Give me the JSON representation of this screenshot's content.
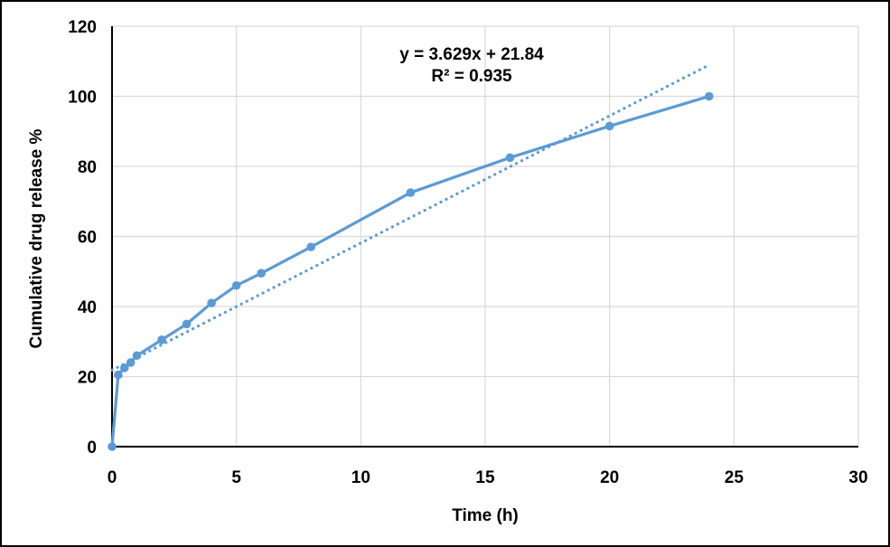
{
  "chart_data": {
    "type": "line",
    "title": "",
    "xlabel": "Time (h)",
    "ylabel": "Cumulative drug release %",
    "x": [
      0,
      0.25,
      0.5,
      0.75,
      1,
      2,
      3,
      4,
      5,
      6,
      8,
      12,
      16,
      20,
      24
    ],
    "series": [
      {
        "name": "cumulative-drug-release",
        "marker": "circle",
        "values": [
          0,
          20.5,
          22.5,
          24,
          26,
          30.5,
          35,
          41,
          46,
          49.5,
          57,
          72.5,
          82.5,
          91.5,
          100
        ]
      }
    ],
    "trendline": {
      "slope": 3.629,
      "intercept": 21.84,
      "r_squared": 0.935,
      "x_start": 0,
      "x_end": 24,
      "style": "dotted"
    },
    "annotation": {
      "equation": "y = 3.629x + 21.84",
      "r_squared": "R² = 0.935"
    },
    "xlim": [
      0,
      30
    ],
    "ylim": [
      0,
      120
    ],
    "xticks": [
      0,
      5,
      10,
      15,
      20,
      25,
      30
    ],
    "yticks": [
      0,
      20,
      40,
      60,
      80,
      100,
      120
    ],
    "grid": true,
    "legend_position": "none",
    "colors": {
      "series": "#5B9BD5",
      "trendline": "#5B9BD5",
      "grid": "#D9D9D9",
      "axis": "#000000",
      "text": "#000000",
      "background": "#FFFFFF",
      "border": "#000000"
    }
  }
}
